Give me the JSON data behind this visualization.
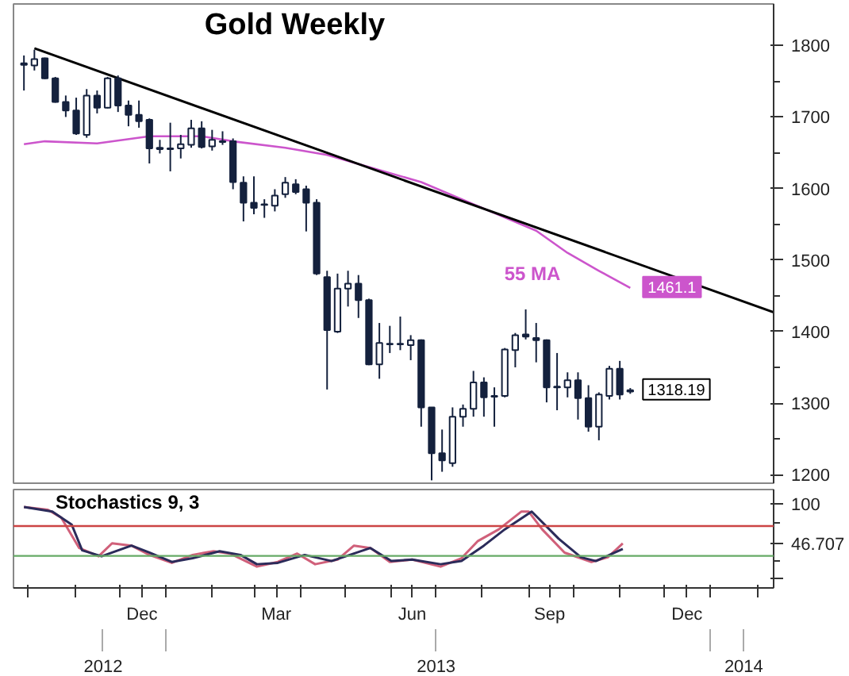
{
  "chart_data": [
    {
      "type": "candlestick",
      "title": "Gold Weekly",
      "tick_labels": "y",
      "grid": false,
      "x": [
        "2012-09-28",
        "2012-10-05",
        "2012-10-12",
        "2012-10-19",
        "2012-10-26",
        "2012-11-02",
        "2012-11-09",
        "2012-11-16",
        "2012-11-23",
        "2012-11-30",
        "2012-12-07",
        "2012-12-14",
        "2012-12-21",
        "2012-12-28",
        "2013-01-04",
        "2013-01-11",
        "2013-01-18",
        "2013-01-25",
        "2013-02-01",
        "2013-02-08",
        "2013-02-15",
        "2013-02-22",
        "2013-03-01",
        "2013-03-08",
        "2013-03-15",
        "2013-03-22",
        "2013-03-29",
        "2013-04-05",
        "2013-04-12",
        "2013-04-19",
        "2013-04-26",
        "2013-05-03",
        "2013-05-10",
        "2013-05-17",
        "2013-05-24",
        "2013-05-31",
        "2013-06-07",
        "2013-06-14",
        "2013-06-21",
        "2013-06-28",
        "2013-07-05",
        "2013-07-12",
        "2013-07-19",
        "2013-07-26",
        "2013-08-02",
        "2013-08-09",
        "2013-08-16",
        "2013-08-23",
        "2013-08-30",
        "2013-09-06",
        "2013-09-13",
        "2013-09-20",
        "2013-09-27",
        "2013-10-04",
        "2013-10-11",
        "2013-10-18",
        "2013-10-25",
        "2013-11-01",
        "2013-11-08"
      ],
      "ohlc": [
        [
          1773,
          1786,
          1737,
          1775
        ],
        [
          1772,
          1794,
          1765,
          1781
        ],
        [
          1782,
          1783,
          1753,
          1754
        ],
        [
          1754,
          1756,
          1720,
          1721
        ],
        [
          1721,
          1730,
          1700,
          1709
        ],
        [
          1709,
          1727,
          1675,
          1677
        ],
        [
          1675,
          1739,
          1671,
          1730
        ],
        [
          1730,
          1737,
          1705,
          1713
        ],
        [
          1713,
          1756,
          1712,
          1754
        ],
        [
          1754,
          1758,
          1707,
          1716
        ],
        [
          1716,
          1723,
          1687,
          1703
        ],
        [
          1703,
          1723,
          1685,
          1694
        ],
        [
          1696,
          1698,
          1635,
          1656
        ],
        [
          1655,
          1668,
          1649,
          1657
        ],
        [
          1656,
          1692,
          1624,
          1655
        ],
        [
          1656,
          1675,
          1642,
          1662
        ],
        [
          1661,
          1696,
          1657,
          1684
        ],
        [
          1684,
          1694,
          1656,
          1658
        ],
        [
          1659,
          1682,
          1653,
          1668
        ],
        [
          1666,
          1680,
          1661,
          1665
        ],
        [
          1666,
          1670,
          1599,
          1609
        ],
        [
          1608,
          1617,
          1554,
          1580
        ],
        [
          1580,
          1617,
          1564,
          1573
        ],
        [
          1578,
          1585,
          1559,
          1577
        ],
        [
          1576,
          1599,
          1568,
          1590
        ],
        [
          1592,
          1616,
          1587,
          1608
        ],
        [
          1606,
          1613,
          1592,
          1595
        ],
        [
          1599,
          1604,
          1540,
          1580
        ],
        [
          1580,
          1585,
          1479,
          1481
        ],
        [
          1476,
          1485,
          1319,
          1402
        ],
        [
          1400,
          1481,
          1398,
          1460
        ],
        [
          1460,
          1485,
          1435,
          1467
        ],
        [
          1467,
          1479,
          1419,
          1444
        ],
        [
          1444,
          1446,
          1353,
          1354
        ],
        [
          1354,
          1412,
          1334,
          1384
        ],
        [
          1382,
          1408,
          1370,
          1383
        ],
        [
          1383,
          1421,
          1374,
          1382
        ],
        [
          1381,
          1395,
          1360,
          1388
        ],
        [
          1388,
          1389,
          1267,
          1294
        ],
        [
          1294,
          1294,
          1192,
          1230
        ],
        [
          1230,
          1263,
          1204,
          1220
        ],
        [
          1216,
          1294,
          1211,
          1281
        ],
        [
          1281,
          1298,
          1267,
          1292
        ],
        [
          1292,
          1345,
          1281,
          1329
        ],
        [
          1329,
          1336,
          1281,
          1308
        ],
        [
          1310,
          1322,
          1267,
          1309
        ],
        [
          1310,
          1377,
          1308,
          1375
        ],
        [
          1374,
          1398,
          1350,
          1395
        ],
        [
          1396,
          1431,
          1389,
          1393
        ],
        [
          1391,
          1412,
          1357,
          1388
        ],
        [
          1388,
          1389,
          1301,
          1322
        ],
        [
          1323,
          1370,
          1290,
          1322
        ],
        [
          1322,
          1343,
          1308,
          1332
        ],
        [
          1332,
          1343,
          1277,
          1307
        ],
        [
          1307,
          1325,
          1260,
          1267
        ],
        [
          1267,
          1315,
          1248,
          1312
        ],
        [
          1310,
          1352,
          1305,
          1348
        ],
        [
          1348,
          1359,
          1305,
          1312
        ],
        [
          1316,
          1321,
          1313,
          1318.19
        ]
      ],
      "series": [
        {
          "type": "line",
          "name": "55 MA",
          "color": "#cc55cc",
          "x": [
            "2012-09-28",
            "2012-10-12",
            "2012-11-16",
            "2012-12-21",
            "2013-01-25",
            "2013-02-15",
            "2013-03-22",
            "2013-04-19",
            "2013-05-17",
            "2013-06-21",
            "2013-07-26",
            "2013-09-06",
            "2013-09-27",
            "2013-10-18",
            "2013-11-08"
          ],
          "values": [
            1662,
            1666,
            1663,
            1673,
            1673,
            1666,
            1657,
            1647,
            1630,
            1609,
            1578,
            1541,
            1510,
            1485,
            1461
          ]
        },
        {
          "type": "line",
          "color": "#000000",
          "x": [
            "2012-10-05",
            "2014-02-12"
          ],
          "values": [
            1796,
            1427
          ]
        }
      ],
      "xlim": [
        "2012-09-21",
        "2014-02-12"
      ],
      "ylim": [
        1188,
        1858
      ],
      "yticks": [
        1200,
        1300,
        1400,
        1500,
        1600,
        1700,
        1800
      ],
      "annotations": [
        {
          "text": "1461.1",
          "x": "2013-11-08",
          "y": 1461.1
        },
        {
          "text": "1318.19",
          "x": "2013-11-08",
          "y": 1318.19
        }
      ]
    },
    {
      "type": "line",
      "title": "Stochastics 9, 3",
      "grid": false,
      "series": [
        {
          "color": "#d0607a",
          "x": [
            "2012-09-28",
            "2012-10-14",
            "2012-10-23",
            "2012-11-04",
            "2012-11-17",
            "2012-11-26",
            "2012-12-09",
            "2012-12-21",
            "2013-01-05",
            "2013-01-19",
            "2013-02-02",
            "2013-02-13",
            "2013-03-03",
            "2013-03-17",
            "2013-03-30",
            "2013-04-11",
            "2013-04-26",
            "2013-05-07",
            "2013-05-18",
            "2013-05-31",
            "2013-06-15",
            "2013-07-04",
            "2013-07-18",
            "2013-07-29",
            "2013-08-12",
            "2013-08-27",
            "2013-09-01",
            "2013-09-10",
            "2013-09-25",
            "2013-10-13",
            "2013-10-24",
            "2013-11-03"
          ],
          "values": [
            95.6,
            91.9,
            81.3,
            40.6,
            29.4,
            46.9,
            43.8,
            31.3,
            20.6,
            31.3,
            36.3,
            33.1,
            15.6,
            21.9,
            33.1,
            18.8,
            25,
            43.8,
            40.6,
            21.9,
            25,
            15.6,
            26.9,
            50,
            65.6,
            89.4,
            89.4,
            65.6,
            34.4,
            21.9,
            28.1,
            46.7
          ]
        },
        {
          "color": "#2b2b5a",
          "x": [
            "2012-09-28",
            "2012-10-17",
            "2012-10-30",
            "2012-11-06",
            "2012-11-19",
            "2012-12-09",
            "2012-12-21",
            "2013-01-05",
            "2013-01-19",
            "2013-02-06",
            "2013-02-20",
            "2013-03-03",
            "2013-03-17",
            "2013-04-04",
            "2013-04-22",
            "2013-05-18",
            "2013-06-01",
            "2013-06-15",
            "2013-07-04",
            "2013-07-18",
            "2013-08-02",
            "2013-08-16",
            "2013-09-03",
            "2013-09-21",
            "2013-10-06",
            "2013-10-16",
            "2013-11-03"
          ],
          "values": [
            95.6,
            89.4,
            71.9,
            37.5,
            29.4,
            43.8,
            34.4,
            21.9,
            26.9,
            36.3,
            31.3,
            18.8,
            20.6,
            31.3,
            23.1,
            40.6,
            23.1,
            25,
            18.8,
            23.1,
            43.8,
            65.6,
            89.4,
            53.1,
            28.1,
            23.1,
            39.4
          ]
        }
      ],
      "ref_lines": [
        {
          "axis": "y",
          "value": 70,
          "color": "#cc4444"
        },
        {
          "axis": "y",
          "value": 30,
          "color": "#66aa66"
        }
      ],
      "xlim": [
        "2012-09-21",
        "2014-02-12"
      ],
      "ylim": [
        -13,
        119
      ],
      "yticks": [
        100,
        {
          "value": 46.707,
          "label": "46.707"
        },
        {
          "value": 0,
          "label": null
        }
      ],
      "xticks": [
        {
          "value": "2012-10-01",
          "label": null
        },
        {
          "value": "2012-11-01",
          "label": null
        },
        {
          "value": "2012-12-01",
          "label": null
        },
        {
          "value": "2012-12-16",
          "label": "Dec"
        },
        {
          "value": "2013-01-01",
          "label": null
        },
        {
          "value": "2013-02-01",
          "label": null
        },
        {
          "value": "2013-03-01",
          "label": null
        },
        {
          "value": "2013-03-16",
          "label": "Mar"
        },
        {
          "value": "2013-04-01",
          "label": null
        },
        {
          "value": "2013-05-01",
          "label": null
        },
        {
          "value": "2013-06-01",
          "label": null
        },
        {
          "value": "2013-06-15",
          "label": "Jun"
        },
        {
          "value": "2013-07-01",
          "label": null
        },
        {
          "value": "2013-08-01",
          "label": null
        },
        {
          "value": "2013-09-01",
          "label": null
        },
        {
          "value": "2013-09-15",
          "label": "Sep"
        },
        {
          "value": "2013-10-01",
          "label": null
        },
        {
          "value": "2013-11-01",
          "label": null
        },
        {
          "value": "2013-12-01",
          "label": null
        },
        {
          "value": "2013-12-16",
          "label": "Dec"
        },
        {
          "value": "2014-01-01",
          "label": null
        },
        {
          "value": "2014-02-01",
          "label": null
        }
      ],
      "x2lim": [
        "2012-09-21",
        "2014-02-12"
      ],
      "x2ticks": [
        {
          "value": "2012-11-20",
          "label": "2012"
        },
        {
          "value": "2013-01-01",
          "label": null
        },
        {
          "value": "2013-07-01",
          "label": "2013"
        },
        {
          "value": "2014-01-01",
          "label": null
        },
        {
          "value": "2014-01-23",
          "label": "2014"
        }
      ]
    }
  ]
}
